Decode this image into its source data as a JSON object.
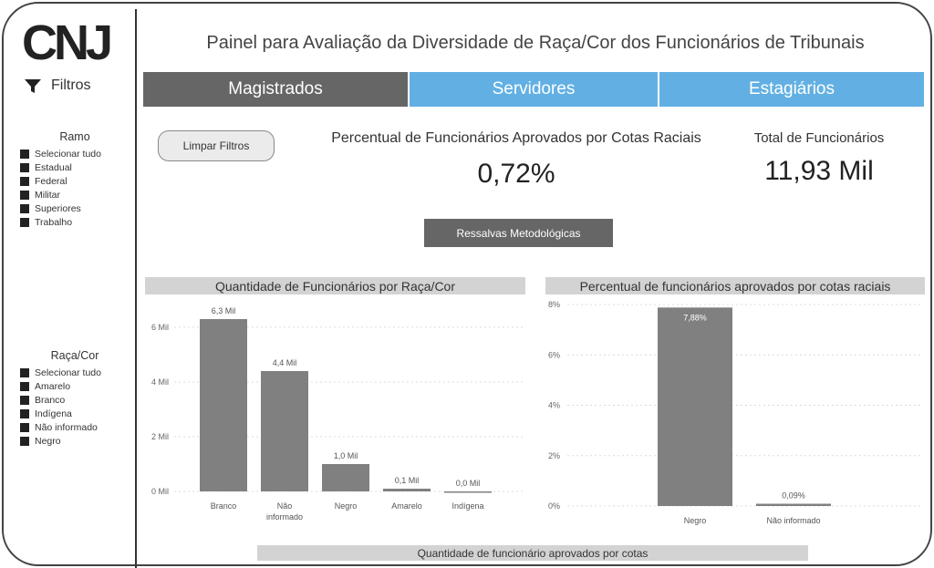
{
  "header": {
    "logo_text": "CNJ",
    "title": "Painel para Avaliação da Diversidade de Raça/Cor dos Funcionários de Tribunais"
  },
  "sidebar": {
    "filters_label": "Filtros",
    "ramo": {
      "title": "Ramo",
      "items": [
        "Selecionar tudo",
        "Estadual",
        "Federal",
        "Militar",
        "Superiores",
        "Trabalho"
      ]
    },
    "raca": {
      "title": "Raça/Cor",
      "items": [
        "Selecionar tudo",
        "Amarelo",
        "Branco",
        "Indígena",
        "Não informado",
        "Negro"
      ]
    }
  },
  "tabs": [
    {
      "label": "Magistrados",
      "active": true
    },
    {
      "label": "Servidores",
      "active": false
    },
    {
      "label": "Estagiários",
      "active": false
    }
  ],
  "controls": {
    "clear_filters": "Limpar Filtros",
    "ressalvas": "Ressalvas Metodológicas"
  },
  "kpis": {
    "percent_label": "Percentual de Funcionários Aprovados por Cotas Raciais",
    "percent_value": "0,72%",
    "total_label": "Total de Funcionários",
    "total_value": "11,93 Mil"
  },
  "colors": {
    "active_tab": "#666666",
    "inactive_tab": "#62b0e3",
    "bar": "#808080",
    "header_band": "#d3d3d3"
  },
  "chart_data": [
    {
      "type": "bar",
      "title": "Quantidade de Funcionários por Raça/Cor",
      "categories": [
        "Branco",
        "Não informado",
        "Negro",
        "Amarelo",
        "Indígena"
      ],
      "category_lines": [
        [
          "Branco"
        ],
        [
          "Não",
          "informado"
        ],
        [
          "Negro"
        ],
        [
          "Amarelo"
        ],
        [
          "Indígena"
        ]
      ],
      "values": [
        6.3,
        4.4,
        1.0,
        0.1,
        0.0
      ],
      "value_labels": [
        "6,3 Mil",
        "4,4 Mil",
        "1,0 Mil",
        "0,1 Mil",
        "0,0 Mil"
      ],
      "ylim": [
        0,
        6.6
      ],
      "yticks": [
        0,
        2,
        4,
        6
      ],
      "ytick_labels": [
        "0 Mil",
        "2 Mil",
        "4 Mil",
        "6 Mil"
      ],
      "grid": true
    },
    {
      "type": "bar",
      "title": "Percentual de funcionários aprovados por cotas raciais",
      "categories": [
        "Negro",
        "Não informado"
      ],
      "category_lines": [
        [
          "Negro"
        ],
        [
          "Não informado"
        ]
      ],
      "values": [
        7.88,
        0.09
      ],
      "value_labels": [
        "7,88%",
        "0,09%"
      ],
      "ylim": [
        0,
        8.0
      ],
      "yticks": [
        0,
        2,
        4,
        6,
        8
      ],
      "ytick_labels": [
        "0%",
        "2%",
        "4%",
        "6%",
        "8%"
      ],
      "grid": true
    },
    {
      "type": "bar",
      "title": "Quantidade de funcionário aprovados por cotas"
    }
  ]
}
